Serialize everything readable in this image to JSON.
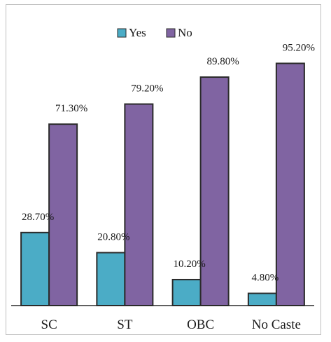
{
  "chart_data": {
    "type": "bar",
    "title": "",
    "xlabel": "",
    "ylabel": "",
    "categories": [
      "SC",
      "ST",
      "OBC",
      "No Caste"
    ],
    "series": [
      {
        "name": "Yes",
        "color": "#4bacc6",
        "values": [
          28.7,
          20.8,
          10.2,
          4.8
        ],
        "labels": [
          "28.70%",
          "20.80%",
          "10.20%",
          "4.80%"
        ]
      },
      {
        "name": "No",
        "color": "#8064a2",
        "values": [
          71.3,
          79.2,
          89.8,
          95.2
        ],
        "labels": [
          "71.30%",
          "79.20%",
          "89.80%",
          "95.20%"
        ]
      }
    ],
    "ylim": [
      0,
      100
    ],
    "grid": false,
    "legend": "top-center",
    "bar_outline_color": "#2b2b2b",
    "axis_color": "#2b2b2b"
  }
}
